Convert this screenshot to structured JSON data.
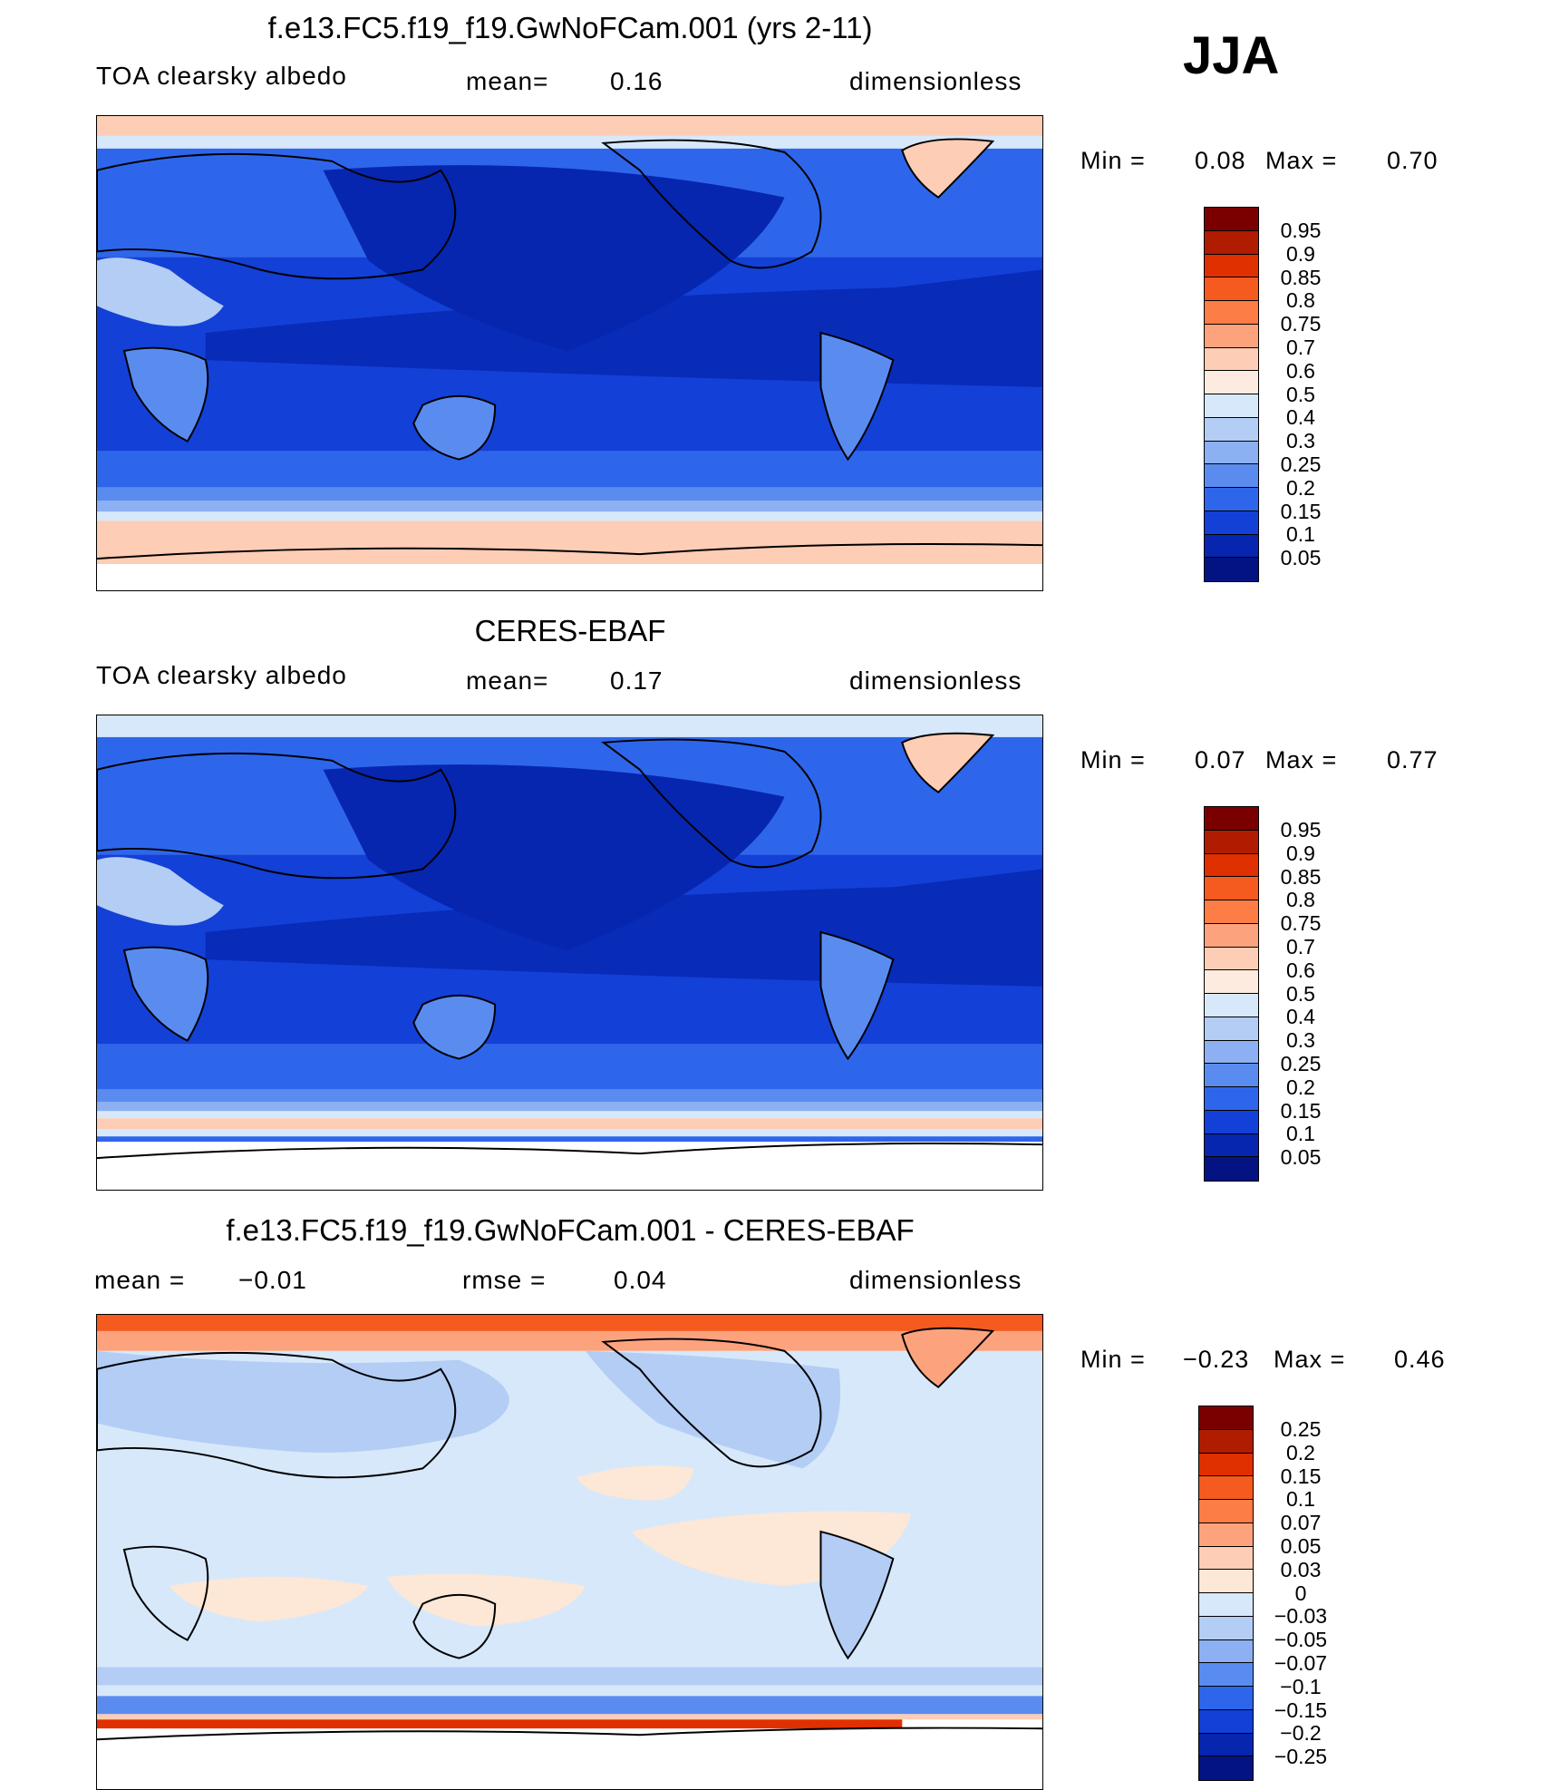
{
  "season": "JJA",
  "panels": [
    {
      "title": "f.e13.FC5.f19_f19.GwNoFCam.001 (yrs 2-11)",
      "left": "TOA clearsky albedo",
      "mid_label": "mean=",
      "mid_value": "0.16",
      "units": "dimensionless",
      "min_label": "Min =",
      "min_value": "0.08",
      "max_label": "Max =",
      "max_value": "0.70",
      "levels": [
        "0.95",
        "0.9",
        "0.85",
        "0.8",
        "0.75",
        "0.7",
        "0.6",
        "0.5",
        "0.4",
        "0.3",
        "0.25",
        "0.2",
        "0.15",
        "0.1",
        "0.05"
      ]
    },
    {
      "title": "CERES-EBAF",
      "left": "TOA clearsky albedo",
      "mid_label": "mean=",
      "mid_value": "0.17",
      "units": "dimensionless",
      "min_label": "Min =",
      "min_value": "0.07",
      "max_label": "Max =",
      "max_value": "0.77",
      "levels": [
        "0.95",
        "0.9",
        "0.85",
        "0.8",
        "0.75",
        "0.7",
        "0.6",
        "0.5",
        "0.4",
        "0.3",
        "0.25",
        "0.2",
        "0.15",
        "0.1",
        "0.05"
      ]
    },
    {
      "title": "f.e13.FC5.f19_f19.GwNoFCam.001 - CERES-EBAF",
      "mean_label": "mean =",
      "mean_value": "−0.01",
      "mid_label": "rmse =",
      "mid_value": "0.04",
      "units": "dimensionless",
      "min_label": "Min =",
      "min_value": "−0.23",
      "max_label": "Max =",
      "max_value": "0.46",
      "levels": [
        "0.25",
        "0.2",
        "0.15",
        "0.1",
        "0.07",
        "0.05",
        "0.03",
        "0",
        "−0.03",
        "−0.05",
        "−0.07",
        "−0.1",
        "−0.15",
        "−0.2",
        "−0.25"
      ]
    }
  ],
  "colors": {
    "abs_scale": [
      "#7a0000",
      "#b01c00",
      "#e03000",
      "#f55a1e",
      "#fc7d46",
      "#fca37e",
      "#fdcdb5",
      "#fdebdf",
      "#d7e8fa",
      "#b3cdf5",
      "#8cb0f2",
      "#5a8cf0",
      "#2e66eb",
      "#1340d6",
      "#0626b0",
      "#041382"
    ],
    "diff_scale": [
      "#7a0000",
      "#b01c00",
      "#e03000",
      "#f55a1e",
      "#fc7d46",
      "#fca37e",
      "#fdcdb5",
      "#fde7d6",
      "#d7e8fa",
      "#b3cdf5",
      "#8cb0f2",
      "#5a8cf0",
      "#2e66eb",
      "#1340d6",
      "#0626b0",
      "#041382"
    ]
  }
}
